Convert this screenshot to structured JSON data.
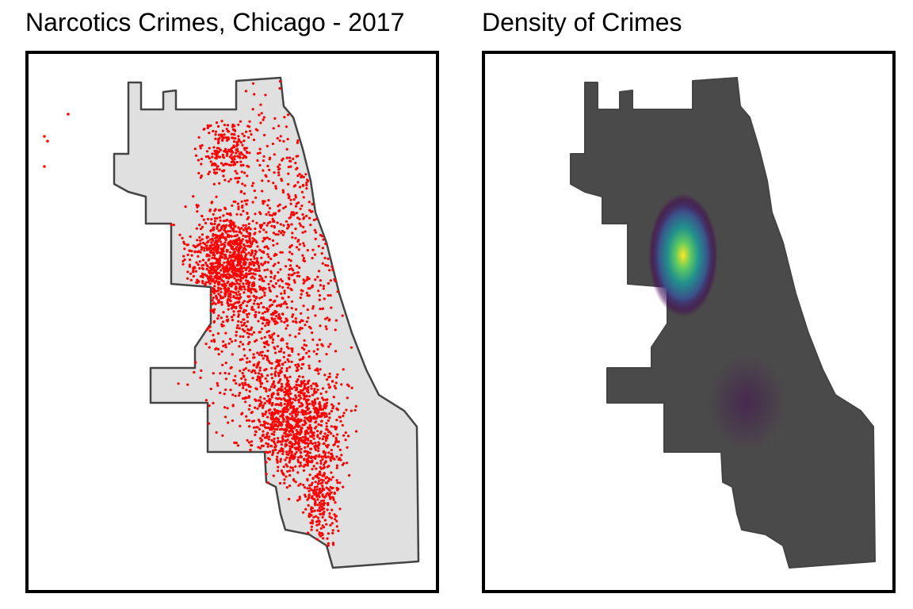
{
  "panels": [
    {
      "title": "Narcotics Crimes, Chicago - 2017"
    },
    {
      "title": "Density of Crimes"
    }
  ],
  "colors": {
    "city_fill": "#e0e0e0",
    "city_outline": "#444444",
    "points": "#ff0000",
    "density_base": "#4a4a4a",
    "density_palette": [
      "#440154",
      "#3b528b",
      "#21918c",
      "#5ec962",
      "#fde725"
    ]
  },
  "icons": [
    "crime-point-marker"
  ]
}
